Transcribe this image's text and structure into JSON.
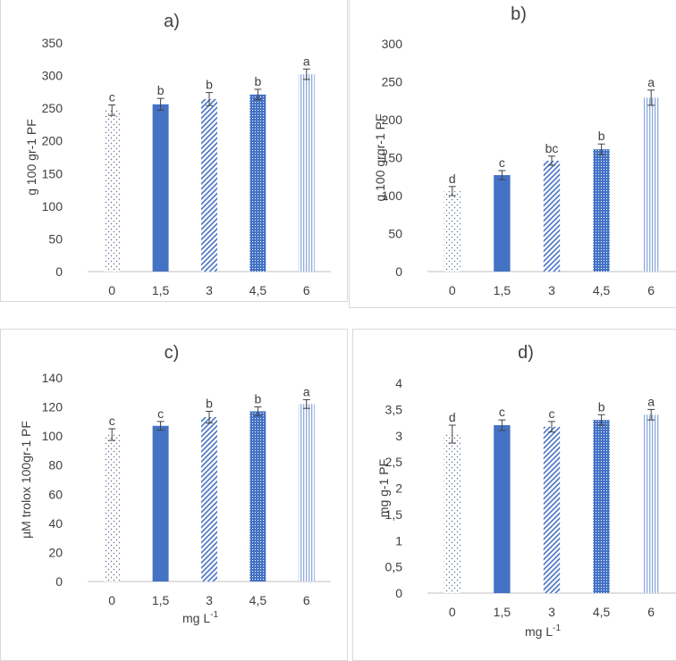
{
  "chart_data": [
    {
      "id": "a",
      "type": "bar",
      "title": "a)",
      "ylabel": "g 100 gr-1 PF",
      "xlabel": "",
      "categories": [
        "0",
        "1,5",
        "3",
        "4,5",
        "6"
      ],
      "values": [
        247,
        256,
        264,
        271,
        302
      ],
      "errors": [
        8,
        9,
        10,
        8,
        8
      ],
      "letters": [
        "c",
        "b",
        "b",
        "b",
        "a"
      ],
      "ylim": [
        0,
        350
      ],
      "yticks": [
        "0",
        "50",
        "100",
        "150",
        "200",
        "250",
        "300",
        "350"
      ],
      "ytick_values": [
        0,
        50,
        100,
        150,
        200,
        250,
        300,
        350
      ],
      "grid": false
    },
    {
      "id": "b",
      "type": "bar",
      "title": "b)",
      "ylabel": "g 100 grgr-1 PF",
      "xlabel": "",
      "categories": [
        "0",
        "1,5",
        "3",
        "4,5",
        "6"
      ],
      "values": [
        106,
        127,
        146,
        161,
        229
      ],
      "errors": [
        6,
        6,
        6,
        7,
        10
      ],
      "letters": [
        "d",
        "c",
        "bc",
        "b",
        "a"
      ],
      "ylim": [
        0,
        300
      ],
      "yticks": [
        "0",
        "50",
        "100",
        "150",
        "200",
        "250",
        "300"
      ],
      "ytick_values": [
        0,
        50,
        100,
        150,
        200,
        250,
        300
      ],
      "grid": false
    },
    {
      "id": "c",
      "type": "bar",
      "title": "c)",
      "ylabel": "µM trolox 100gr-1  PF",
      "xlabel": "mg L",
      "xlabel_sup": "-1",
      "categories": [
        "0",
        "1,5",
        "3",
        "4,5",
        "6"
      ],
      "values": [
        101,
        107,
        113,
        117,
        122
      ],
      "errors": [
        4,
        3,
        4,
        3,
        3
      ],
      "letters": [
        "c",
        "c",
        "b",
        "b",
        "a"
      ],
      "ylim": [
        0,
        140
      ],
      "yticks": [
        "0",
        "20",
        "40",
        "60",
        "80",
        "100",
        "120",
        "140"
      ],
      "ytick_values": [
        0,
        20,
        40,
        60,
        80,
        100,
        120,
        140
      ],
      "grid": false
    },
    {
      "id": "d",
      "type": "bar",
      "title": "d)",
      "ylabel": "mg g-1 PF",
      "xlabel": "mg L",
      "xlabel_sup": "-1",
      "categories": [
        "0",
        "1,5",
        "3",
        "4,5",
        "6"
      ],
      "values": [
        3.03,
        3.2,
        3.17,
        3.3,
        3.4
      ],
      "errors": [
        0.17,
        0.1,
        0.1,
        0.1,
        0.1
      ],
      "letters": [
        "d",
        "c",
        "c",
        "b",
        "a"
      ],
      "ylim": [
        0,
        4
      ],
      "yticks": [
        "0",
        "0,5",
        "1",
        "1,5",
        "2",
        "2,5",
        "3",
        "3,5",
        "4"
      ],
      "ytick_values": [
        0,
        0.5,
        1,
        1.5,
        2,
        2.5,
        3,
        3.5,
        4
      ],
      "grid": false
    }
  ],
  "colors": {
    "bar_blue": "#4472c4",
    "bar_light": "#8faadc",
    "axis": "#bfbfbf",
    "text": "#404040",
    "errorbar": "#404040"
  }
}
